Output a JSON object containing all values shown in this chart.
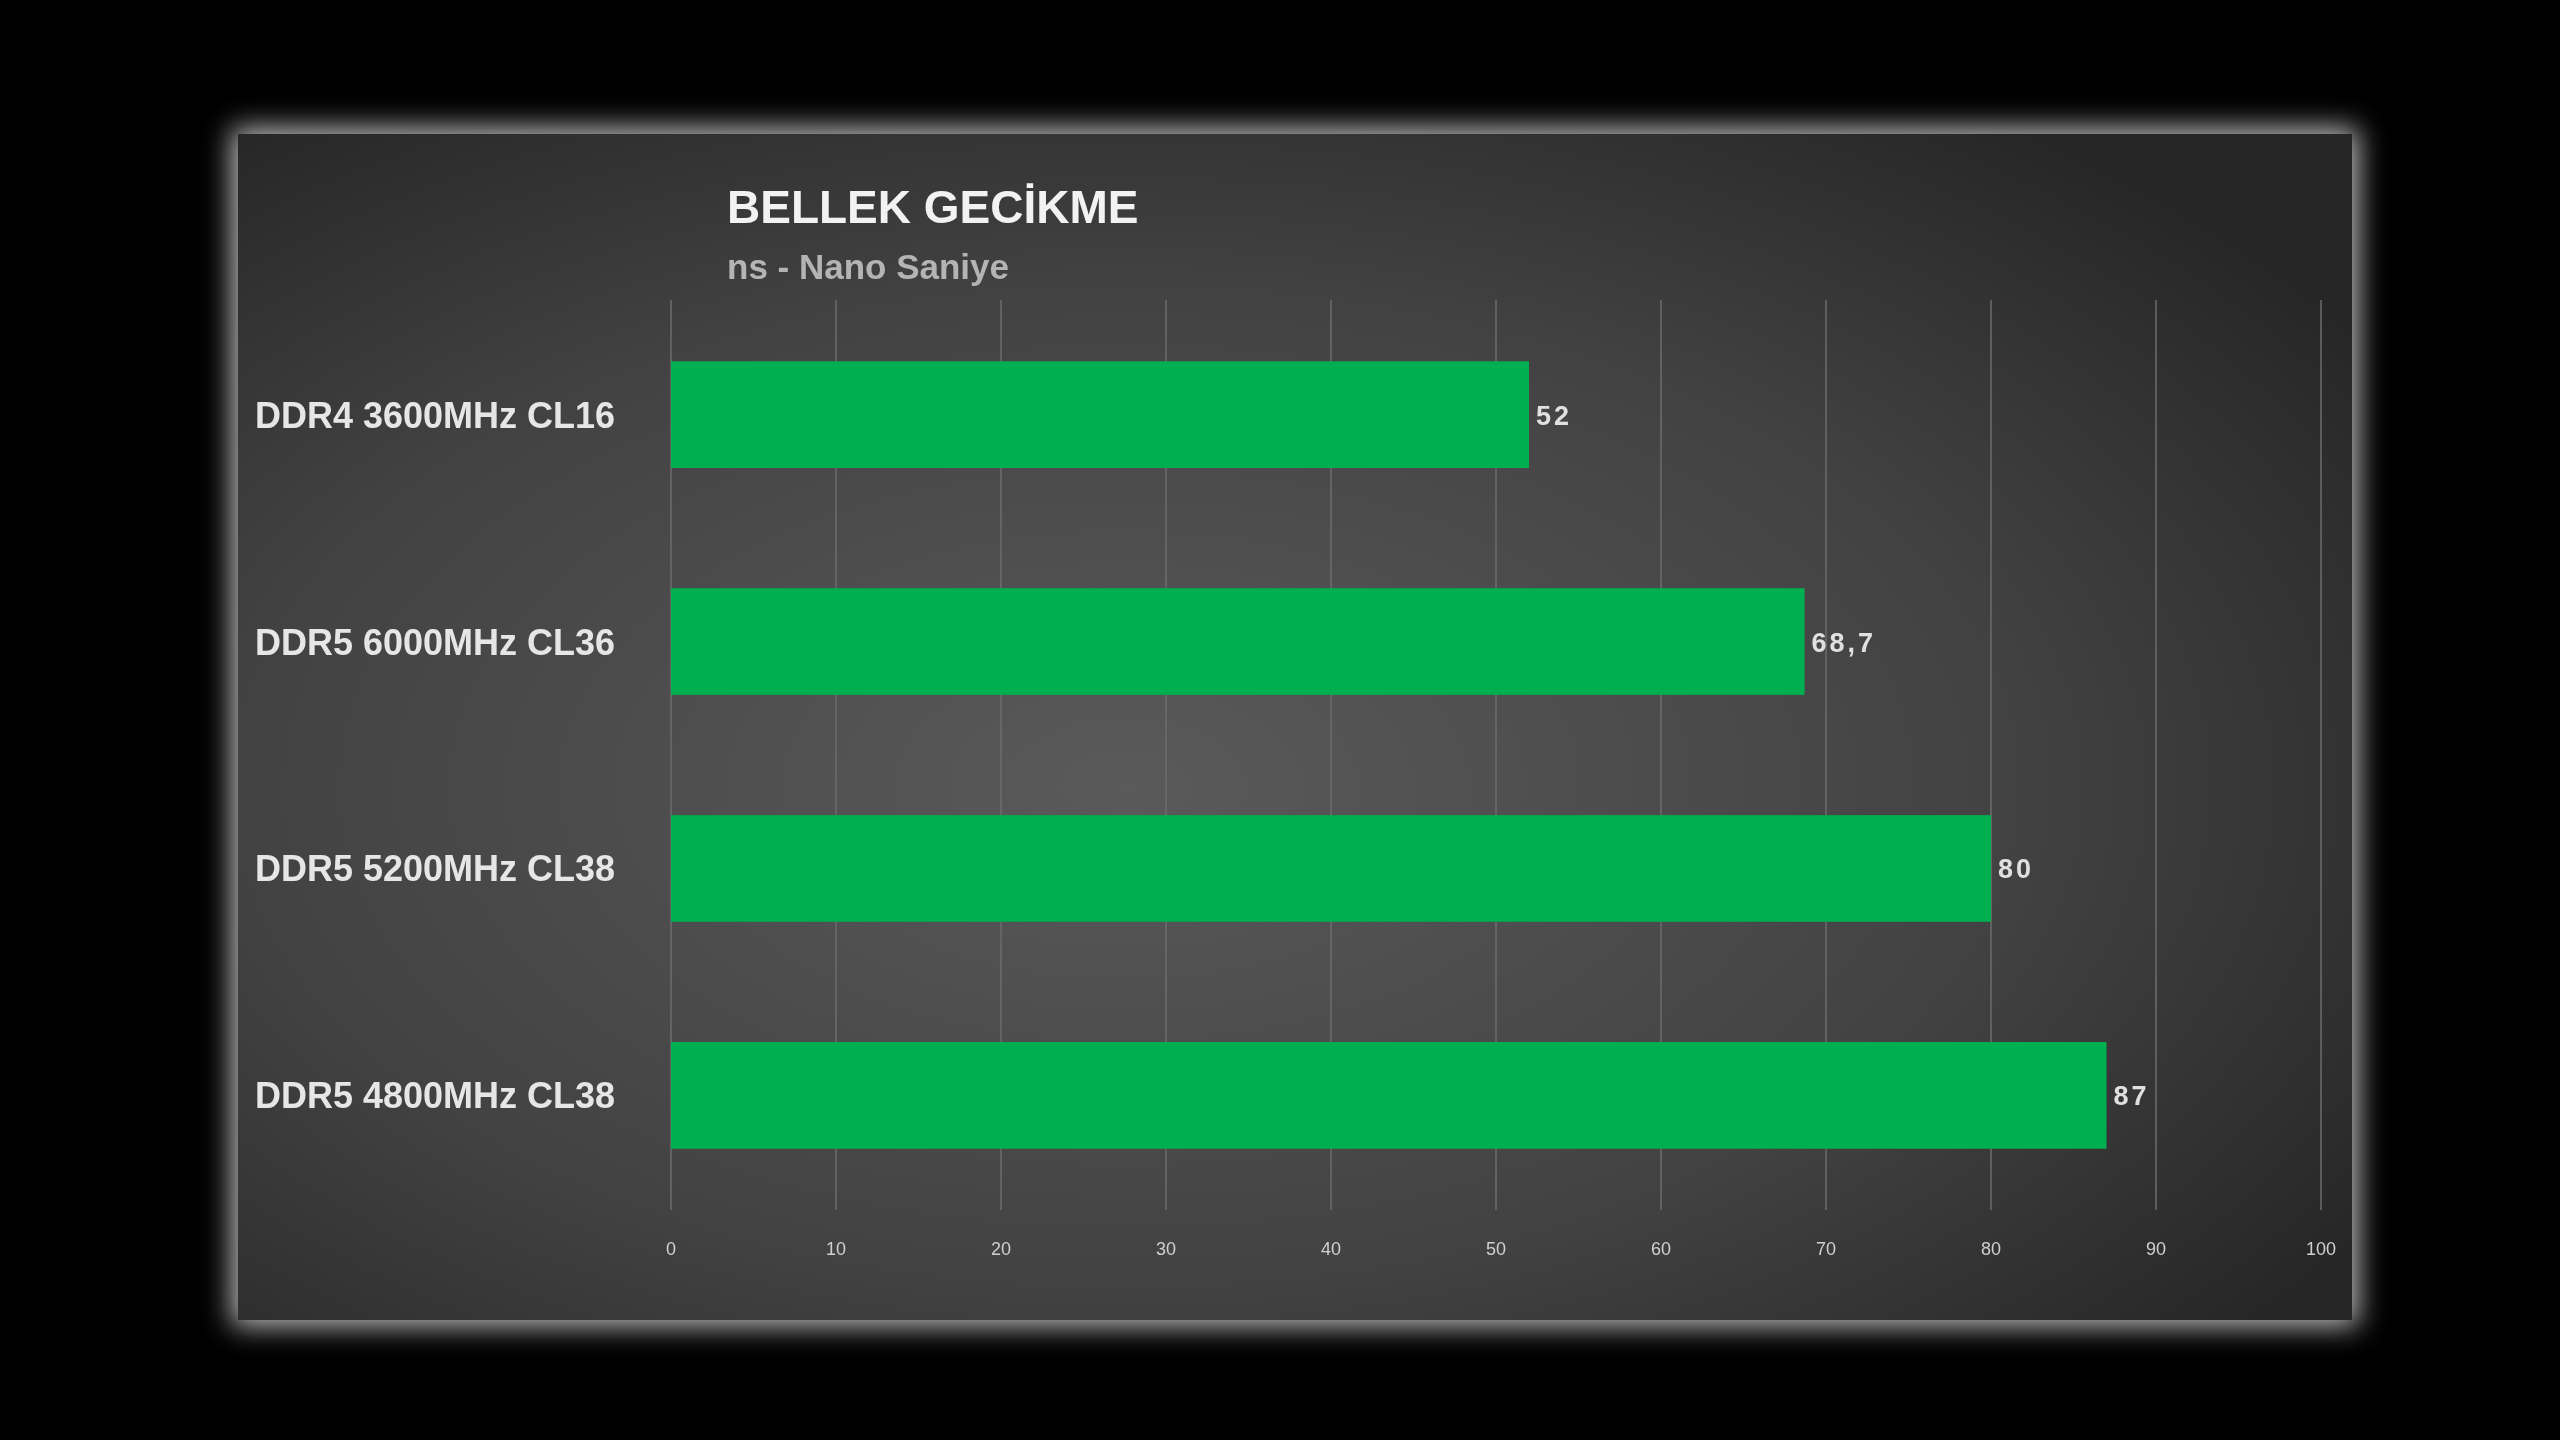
{
  "chart_data": {
    "type": "bar",
    "orientation": "horizontal",
    "title": "BELLEK GECİKME",
    "subtitle": "ns - Nano Saniye",
    "categories": [
      "DDR4 3600MHz CL16",
      "DDR5 6000MHz CL36",
      "DDR5 5200MHz CL38",
      "DDR5 4800MHz CL38"
    ],
    "values": [
      52,
      68.7,
      80,
      87
    ],
    "value_labels": [
      "52",
      "68,7",
      "80",
      "87"
    ],
    "color": "#00b050",
    "xlim": [
      0,
      100
    ],
    "xticks": [
      0,
      10,
      20,
      30,
      40,
      50,
      60,
      70,
      80,
      90,
      100
    ],
    "grid": "x"
  }
}
